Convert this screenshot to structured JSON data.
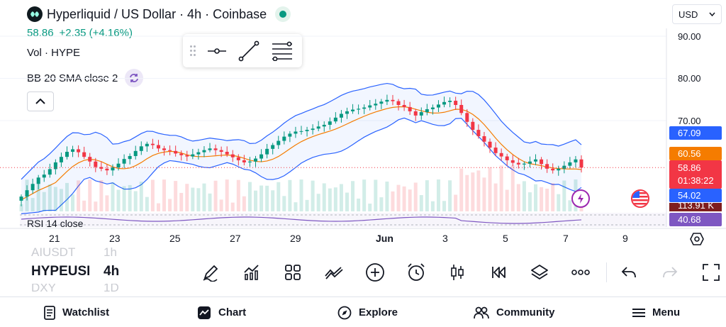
{
  "header": {
    "title": "Hyperliquid / US Dollar · 4h · Coinbase",
    "price": "58.86",
    "change": "+2.35 (+4.16%)",
    "volume_label": "Vol · HYPE",
    "bb_label": "BB 20 SMA close 2",
    "currency": "USD"
  },
  "price_axis": [
    "90.00",
    "80.00",
    "70.00"
  ],
  "price_tags": {
    "bb_upper": "67.09",
    "ma": "60.56",
    "current": "58.86",
    "countdown": "01:38:22",
    "bb_lower": "54.02",
    "partial": "113.91 K",
    "rsi": "40.68"
  },
  "rsi_label": "RSI 14 close",
  "date_axis": [
    "21",
    "23",
    "25",
    "27",
    "29",
    "Jun",
    "3",
    "5",
    "7",
    "9"
  ],
  "symbols": {
    "prev": "AIUSDT",
    "current": "HYPEUSD",
    "next": "DXY"
  },
  "intervals": {
    "prev": "1h",
    "current": "4h",
    "next": "1D"
  },
  "toolbar": [
    "pencil-icon",
    "indicators-icon",
    "layouts-icon",
    "compare-icon",
    "add-icon",
    "alert-icon",
    "candles-icon",
    "replay-icon",
    "layers-icon",
    "more-icon",
    "undo-icon",
    "redo-icon",
    "fullscreen-icon"
  ],
  "nav": {
    "watchlist": "Watchlist",
    "chart": "Chart",
    "explore": "Explore",
    "community": "Community",
    "menu": "Menu"
  },
  "colors": {
    "up": "#089981",
    "down": "#f23645",
    "bb_band": "#2962ff",
    "ma": "#f57c00",
    "rsi": "#7e57c2"
  },
  "chart_data": {
    "type": "candlestick",
    "closes": [
      52.0,
      53.5,
      55.0,
      56.5,
      57.2,
      58.5,
      60.1,
      61.4,
      62.6,
      63.2,
      62.5,
      61.4,
      60.3,
      59.0,
      58.6,
      58.2,
      58.9,
      59.8,
      60.9,
      61.6,
      62.8,
      63.9,
      64.5,
      64.2,
      63.4,
      63.0,
      62.8,
      62.2,
      61.8,
      61.5,
      62.0,
      62.5,
      63.0,
      63.4,
      63.0,
      62.6,
      62.0,
      61.3,
      60.6,
      60.1,
      60.3,
      61.0,
      62.0,
      63.3,
      64.2,
      65.2,
      66.2,
      66.9,
      67.4,
      67.5,
      67.8,
      68.1,
      68.6,
      69.0,
      69.8,
      70.7,
      71.6,
      72.2,
      72.6,
      72.8,
      73.1,
      73.6,
      74.0,
      74.5,
      74.9,
      74.6,
      73.7,
      73.2,
      72.2,
      71.2,
      72.0,
      72.7,
      73.1,
      73.8,
      74.4,
      74.7,
      73.7,
      71.8,
      69.7,
      67.8,
      66.3,
      65.0,
      63.6,
      62.3,
      61.5,
      60.6,
      60.0,
      59.6,
      59.8,
      60.3,
      60.8,
      59.7,
      58.6,
      58.2,
      58.6,
      59.3,
      60.1,
      60.8,
      58.86
    ],
    "bb_upper": 67.09,
    "sma": 60.56,
    "bb_lower": 54.02,
    "ylim": [
      50,
      93
    ]
  }
}
